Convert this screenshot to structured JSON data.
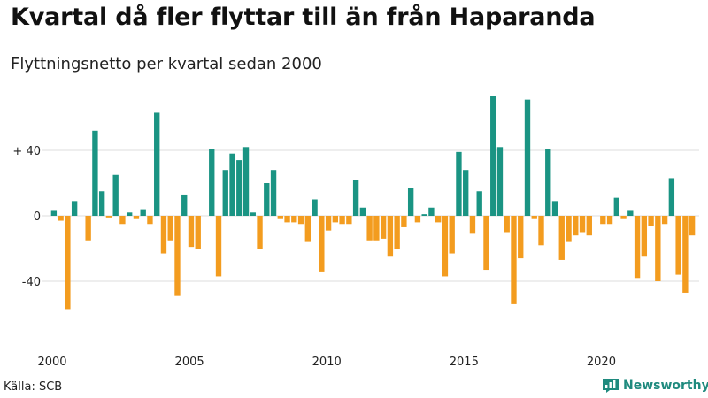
{
  "title": "Kvartal då fler flyttar till än från Haparanda",
  "subtitle": "Flyttningsnetto per kvartal sedan 2000",
  "source": "Källa: SCB",
  "brand": "Newsworthy",
  "colors": {
    "positive": "#1a9483",
    "negative": "#f39c1f",
    "grid": "#dddddd",
    "brand": "#1f8a7e"
  },
  "chart_data": {
    "type": "bar",
    "y_ticks": [
      {
        "value": 40,
        "label": "+ 40"
      },
      {
        "value": 0,
        "label": "0"
      },
      {
        "value": -40,
        "label": "-40"
      }
    ],
    "x_ticks": [
      {
        "value": 2000,
        "label": "2000"
      },
      {
        "value": 2005,
        "label": "2005"
      },
      {
        "value": 2010,
        "label": "2010"
      },
      {
        "value": 2015,
        "label": "2015"
      },
      {
        "value": 2020,
        "label": "2020"
      }
    ],
    "ylim": [
      -62,
      75
    ],
    "first_quarter": "2000 Q1",
    "grid": true,
    "values": [
      3,
      -3,
      -57,
      9,
      0,
      -15,
      52,
      15,
      -1,
      25,
      -5,
      2,
      -2,
      4,
      -5,
      63,
      -23,
      -15,
      -49,
      13,
      -19,
      -20,
      0,
      41,
      -37,
      28,
      38,
      34,
      42,
      2,
      -20,
      20,
      28,
      -2,
      -4,
      -4,
      -5,
      -16,
      10,
      -34,
      -9,
      -4,
      -5,
      -5,
      22,
      5,
      -15,
      -15,
      -14,
      -25,
      -20,
      -7,
      17,
      -4,
      1,
      5,
      -4,
      -37,
      -23,
      39,
      28,
      -11,
      15,
      -33,
      73,
      42,
      -10,
      -54,
      -26,
      71,
      -2,
      -18,
      41,
      9,
      -27,
      -16,
      -12,
      -10,
      -12,
      0,
      -5,
      -5,
      11,
      -2,
      3,
      -38,
      -25,
      -6,
      -40,
      -5,
      23,
      -36,
      -47,
      -12
    ]
  }
}
